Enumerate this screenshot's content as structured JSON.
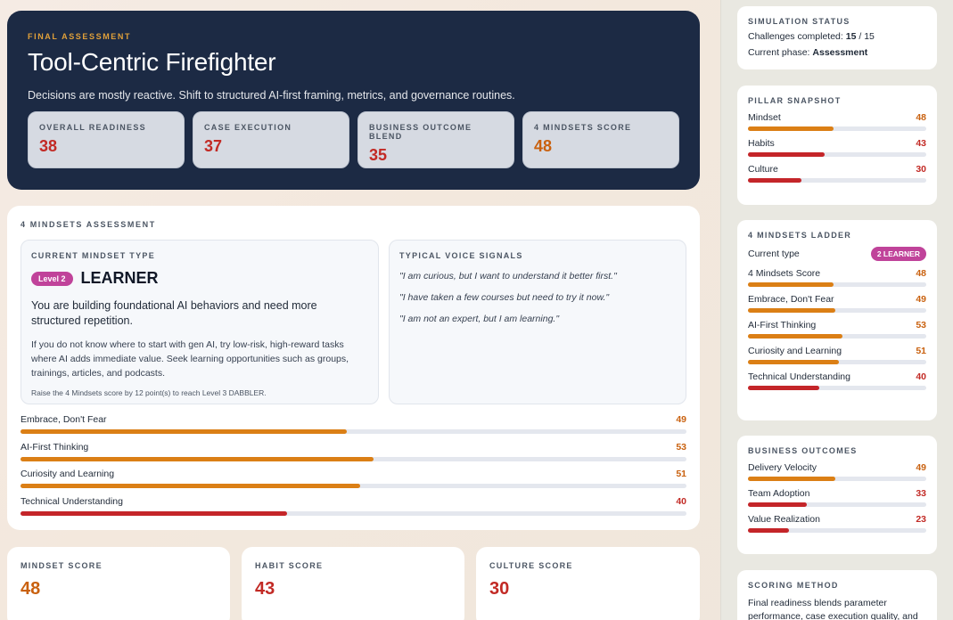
{
  "hero": {
    "eyebrow": "FINAL ASSESSMENT",
    "title": "Tool-Centric Firefighter",
    "subtitle": "Decisions are mostly reactive. Shift to structured AI-first framing, metrics, and governance routines.",
    "kpis": [
      {
        "label": "OVERALL READINESS",
        "value": "38"
      },
      {
        "label": "CASE EXECUTION",
        "value": "37"
      },
      {
        "label": "BUSINESS OUTCOME BLEND",
        "value": "35"
      },
      {
        "label": "4 MINDSETS SCORE",
        "value": "48"
      }
    ]
  },
  "assessment": {
    "eyebrow": "4 MINDSETS ASSESSMENT",
    "current": {
      "eyebrow": "CURRENT MINDSET TYPE",
      "level_pill": "Level 2",
      "level_name": "LEARNER",
      "lead": "You are building foundational AI behaviors and need more structured repetition.",
      "desc": "If you do not know where to start with gen AI, try low-risk, high-reward tasks where AI adds immediate value. Seek learning opportunities such as groups, trainings, articles, and podcasts.",
      "hint": "Raise the 4 Mindsets score by 12 point(s) to reach Level 3 DABBLER."
    },
    "voice": {
      "eyebrow": "TYPICAL VOICE SIGNALS",
      "quotes": [
        "\"I am curious, but I want to understand it better first.\"",
        "\"I have taken a few courses but need to try it now.\"",
        "\"I am not an expert, but I am learning.\""
      ]
    },
    "bars": [
      {
        "label": "Embrace, Don't Fear",
        "value": 49,
        "display": "49",
        "color": "orange"
      },
      {
        "label": "AI-First Thinking",
        "value": 53,
        "display": "53",
        "color": "orange"
      },
      {
        "label": "Curiosity and Learning",
        "value": 51,
        "display": "51",
        "color": "orange"
      },
      {
        "label": "Technical Understanding",
        "value": 40,
        "display": "40",
        "color": "red"
      }
    ]
  },
  "scores": [
    {
      "label": "MINDSET SCORE",
      "value": "48"
    },
    {
      "label": "HABIT SCORE",
      "value": "43"
    },
    {
      "label": "CULTURE SCORE",
      "value": "30"
    }
  ],
  "sidebar": {
    "status": {
      "eyebrow": "SIMULATION STATUS",
      "challenges_label": "Challenges completed:",
      "challenges_done": "15",
      "challenges_sep": "/ 15",
      "phase_label": "Current phase:",
      "phase_value": "Assessment"
    },
    "pillars": {
      "eyebrow": "PILLAR SNAPSHOT",
      "rows": [
        {
          "label": "Mindset",
          "value": 48,
          "display": "48",
          "color": "orange"
        },
        {
          "label": "Habits",
          "value": 43,
          "display": "43",
          "color": "red"
        },
        {
          "label": "Culture",
          "value": 30,
          "display": "30",
          "color": "red"
        }
      ]
    },
    "ladder": {
      "eyebrow": "4 MINDSETS LADDER",
      "type_label": "Current type",
      "type_pill": "2 LEARNER",
      "rows": [
        {
          "label": "4 Mindsets Score",
          "value": 48,
          "display": "48",
          "color": "orange"
        },
        {
          "label": "Embrace, Don't Fear",
          "value": 49,
          "display": "49",
          "color": "orange"
        },
        {
          "label": "AI-First Thinking",
          "value": 53,
          "display": "53",
          "color": "orange"
        },
        {
          "label": "Curiosity and Learning",
          "value": 51,
          "display": "51",
          "color": "orange"
        },
        {
          "label": "Technical Understanding",
          "value": 40,
          "display": "40",
          "color": "red"
        }
      ]
    },
    "outcomes": {
      "eyebrow": "BUSINESS OUTCOMES",
      "rows": [
        {
          "label": "Delivery Velocity",
          "value": 49,
          "display": "49",
          "color": "orange"
        },
        {
          "label": "Team Adoption",
          "value": 33,
          "display": "33",
          "color": "red"
        },
        {
          "label": "Value Realization",
          "value": 23,
          "display": "23",
          "color": "red"
        }
      ]
    },
    "method": {
      "eyebrow": "SCORING METHOD",
      "text": "Final readiness blends parameter performance, case execution quality, and"
    }
  },
  "colors": {
    "orange": "#db7f15",
    "red": "#c42529"
  }
}
